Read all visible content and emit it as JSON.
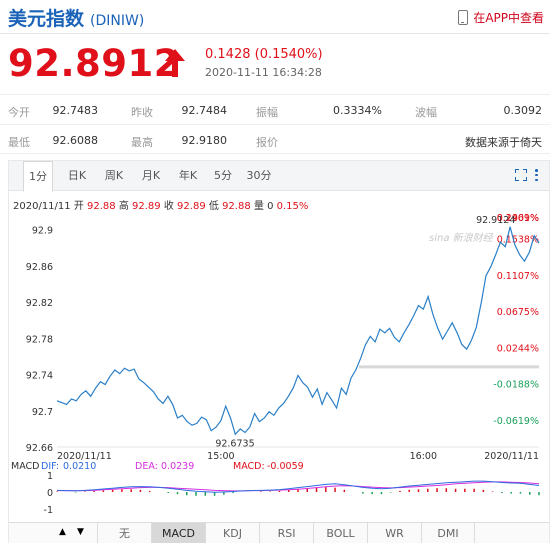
{
  "header": {
    "title": "美元指数",
    "code": "(DINIW)",
    "app_link": "在APP中查看"
  },
  "quote": {
    "price": "92.8912",
    "change": "0.1428 (0.1540%)",
    "timestamp": "2020-11-11 16:34:28"
  },
  "stats": {
    "open_label": "今开",
    "open": "92.7483",
    "prev_close_label": "昨收",
    "prev_close": "92.7484",
    "amplitude_label": "振幅",
    "amplitude": "0.3334%",
    "volatility_label": "波幅",
    "volatility": "0.3092",
    "low_label": "最低",
    "low": "92.6088",
    "high_label": "最高",
    "high": "92.9180",
    "report_label": "报价",
    "source": "数据来源于倚天"
  },
  "tabs": [
    "1分",
    "日K",
    "周K",
    "月K",
    "年K",
    "5分",
    "30分"
  ],
  "info_line": {
    "date": "2020/11/11",
    "open_label": "开",
    "open": "92.88",
    "high_label": "高",
    "high": "92.89",
    "close_label": "收",
    "close": "92.89",
    "low_label": "低",
    "low": "92.88",
    "vol_label": "量",
    "vol": "0",
    "pct": "0.15%"
  },
  "chart_data": {
    "type": "line",
    "title": "",
    "xlabel": "",
    "ylabel": "",
    "ylim": [
      92.66,
      92.92
    ],
    "y_ticks": [
      "92.9",
      "92.86",
      "92.82",
      "92.78",
      "92.74",
      "92.7",
      "92.66"
    ],
    "y_tick_values": [
      92.9,
      92.86,
      92.82,
      92.78,
      92.74,
      92.7,
      92.66
    ],
    "pct_ticks": [
      "0.2401%",
      "0.1969%",
      "0.1538%",
      "0.1107%",
      "0.0675%",
      "0.0244%",
      "-0.0188%",
      "-0.0619%"
    ],
    "pct_tick_values": [
      92.97,
      92.93,
      92.89,
      92.85,
      92.81,
      92.77,
      92.73,
      92.69
    ],
    "x_labels": [
      "2020/11/11",
      "15:00",
      "16:00",
      "2020/11/11"
    ],
    "x_label_positions": [
      0.0,
      0.34,
      0.76,
      1.0
    ],
    "prev_close": 92.7484,
    "high_annotation": "92.9124",
    "low_annotation": "92.6735",
    "x": [
      0,
      1,
      2,
      3,
      4,
      5,
      6,
      7,
      8,
      9,
      10,
      11,
      12,
      13,
      14,
      15,
      16,
      17,
      18,
      19,
      20,
      21,
      22,
      23,
      24,
      25,
      26,
      27,
      28,
      29,
      30,
      31,
      32,
      33,
      34,
      35,
      36,
      37,
      38,
      39,
      40,
      41,
      42,
      43,
      44,
      45,
      46,
      47,
      48,
      49,
      50,
      51,
      52,
      53,
      54,
      55,
      56,
      57,
      58,
      59,
      60,
      61,
      62,
      63,
      64,
      65,
      66,
      67,
      68,
      69,
      70,
      71,
      72,
      73,
      74,
      75,
      76,
      77,
      78,
      79,
      80,
      81,
      82,
      83,
      84,
      85,
      86,
      87,
      88,
      89,
      90,
      91,
      92,
      93,
      94,
      95,
      96,
      97,
      98,
      99,
      100
    ],
    "series": [
      {
        "name": "",
        "values": [
          92.711,
          92.709,
          92.707,
          92.713,
          92.711,
          92.718,
          92.722,
          92.716,
          92.725,
          92.732,
          92.729,
          92.738,
          92.745,
          92.741,
          92.747,
          92.744,
          92.746,
          92.735,
          92.731,
          92.726,
          92.721,
          92.713,
          92.708,
          92.716,
          92.707,
          92.692,
          92.695,
          92.688,
          92.684,
          92.686,
          92.693,
          92.69,
          92.678,
          92.682,
          92.689,
          92.705,
          92.692,
          92.674,
          92.68,
          92.676,
          92.682,
          92.697,
          92.688,
          92.692,
          92.699,
          92.695,
          92.703,
          92.708,
          92.716,
          92.725,
          92.739,
          92.731,
          92.726,
          92.715,
          92.724,
          92.707,
          92.72,
          92.712,
          92.703,
          92.725,
          92.718,
          92.736,
          92.745,
          92.758,
          92.773,
          92.782,
          92.776,
          92.79,
          92.786,
          92.791,
          92.781,
          92.776,
          92.786,
          92.795,
          92.805,
          92.816,
          92.812,
          92.826,
          92.806,
          92.791,
          92.779,
          92.788,
          92.797,
          92.786,
          92.773,
          92.768,
          92.778,
          92.792,
          92.819,
          92.849,
          92.859,
          92.872,
          92.886,
          92.881,
          92.903,
          92.883,
          92.872,
          92.865,
          92.875,
          92.893,
          92.885
        ]
      }
    ],
    "macd": {
      "label": "MACD",
      "dif_label": "DIF:",
      "dif": "0.0210",
      "dea_label": "DEA:",
      "dea": "0.0239",
      "macd_label": "MACD:",
      "macd": "-0.0059",
      "y_ticks": [
        "1",
        "0",
        "-1"
      ],
      "y_tick_values": [
        1,
        0,
        -1
      ],
      "dif_values": [
        0.06,
        0.05,
        0.04,
        0.06,
        0.08,
        0.11,
        0.14,
        0.17,
        0.19,
        0.2,
        0.19,
        0.17,
        0.14,
        0.1,
        0.06,
        0.03,
        0.01,
        -0.01,
        0.0,
        0.02,
        0.04,
        0.05,
        0.06,
        0.07,
        0.09,
        0.12,
        0.16,
        0.2,
        0.24,
        0.28,
        0.3,
        0.27,
        0.22,
        0.17,
        0.14,
        0.12,
        0.14,
        0.18,
        0.22,
        0.25,
        0.28,
        0.31,
        0.34,
        0.36,
        0.38,
        0.4,
        0.4,
        0.38,
        0.35,
        0.33,
        0.32,
        0.28,
        0.24
      ],
      "dea_values": [
        0.05,
        0.05,
        0.05,
        0.05,
        0.06,
        0.08,
        0.1,
        0.12,
        0.14,
        0.16,
        0.17,
        0.17,
        0.16,
        0.14,
        0.12,
        0.1,
        0.08,
        0.06,
        0.05,
        0.04,
        0.04,
        0.05,
        0.05,
        0.06,
        0.07,
        0.08,
        0.1,
        0.13,
        0.16,
        0.19,
        0.22,
        0.23,
        0.22,
        0.2,
        0.18,
        0.16,
        0.15,
        0.16,
        0.18,
        0.2,
        0.22,
        0.24,
        0.27,
        0.3,
        0.32,
        0.34,
        0.36,
        0.37,
        0.37,
        0.36,
        0.35,
        0.33,
        0.3
      ],
      "hist_values": [
        0.02,
        0.0,
        -0.02,
        0.02,
        0.04,
        0.06,
        0.08,
        0.1,
        0.1,
        0.08,
        0.04,
        0.0,
        -0.04,
        -0.08,
        -0.12,
        -0.14,
        -0.14,
        -0.14,
        -0.1,
        -0.04,
        0.0,
        0.0,
        0.02,
        0.02,
        0.04,
        0.08,
        0.12,
        0.14,
        0.16,
        0.18,
        0.16,
        0.08,
        0.0,
        -0.06,
        -0.08,
        -0.08,
        -0.02,
        0.04,
        0.08,
        0.1,
        0.12,
        0.14,
        0.14,
        0.12,
        0.12,
        0.12,
        0.08,
        0.02,
        -0.04,
        -0.06,
        -0.06,
        -0.1,
        -0.12
      ],
      "colors": {
        "dif": "#2d6ce0",
        "dea": "#d62ee0",
        "up": "#e0101a",
        "down": "#1aa05a"
      }
    }
  },
  "indicator_tabs": [
    "无",
    "MACD",
    "KDJ",
    "RSI",
    "BOLL",
    "WR",
    "DMI"
  ],
  "active_indicator": "MACD",
  "colors": {
    "red": "#e0101a",
    "green": "#1aa05a",
    "blue": "#1a63b8",
    "line": "#2a7fc7"
  },
  "icons": {
    "phone": "phone-icon",
    "up_arrow": "up-arrow-icon",
    "expand": "expand-icon",
    "more": "more-icon",
    "prev": "triangle-up-icon",
    "next": "triangle-down-icon"
  }
}
